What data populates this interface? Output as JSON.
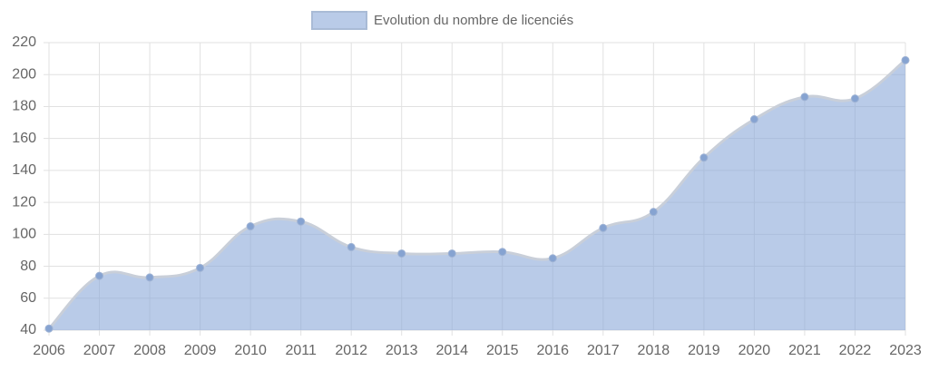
{
  "chart_data": {
    "type": "area",
    "categories": [
      "2006",
      "2007",
      "2008",
      "2009",
      "2010",
      "2011",
      "2012",
      "2013",
      "2014",
      "2015",
      "2016",
      "2017",
      "2018",
      "2019",
      "2020",
      "2021",
      "2022",
      "2023"
    ],
    "series": [
      {
        "name": "Evolution du nombre de licenciés",
        "color": "#8aa8d8",
        "values": [
          41,
          74,
          73,
          79,
          105,
          108,
          92,
          88,
          88,
          89,
          85,
          104,
          114,
          148,
          172,
          186,
          185,
          209
        ]
      }
    ],
    "ylim": [
      40,
      220
    ],
    "yticks": [
      40,
      60,
      80,
      100,
      120,
      140,
      160,
      180,
      200,
      220
    ],
    "grid": true,
    "legend": "top"
  }
}
